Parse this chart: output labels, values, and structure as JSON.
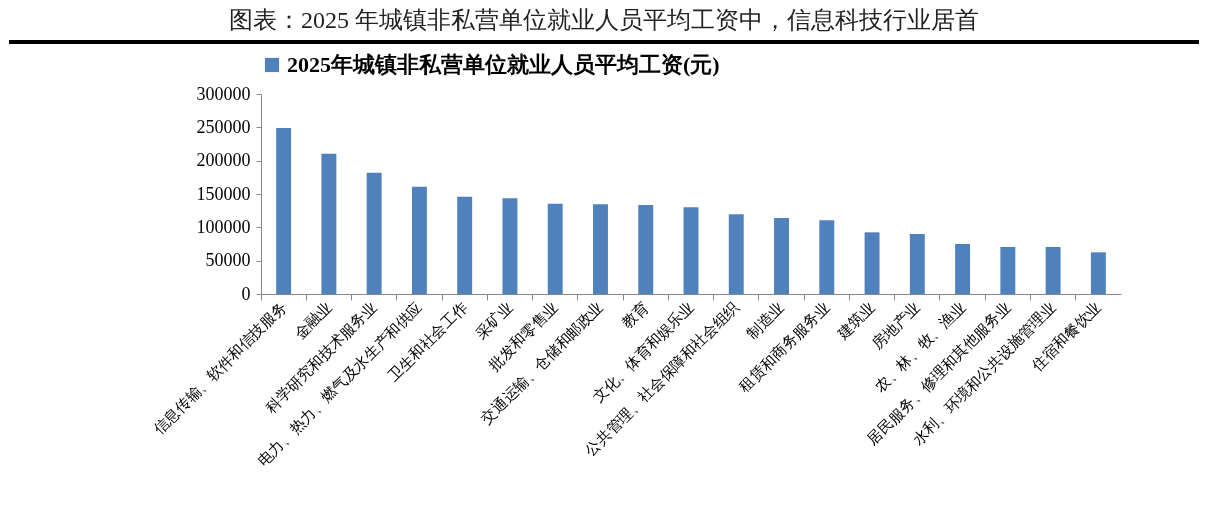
{
  "chart_data": {
    "type": "bar",
    "title": "图表：2025 年城镇非私营单位就业人员平均工资中，信息科技行业居首",
    "categories": [
      "信息传输、软件和信技服务",
      "金融业",
      "科学研究和技术服务业",
      "电力、热力、燃气及水生产和供应",
      "卫生和社会工作",
      "采矿业",
      "批发和零售业",
      "交通运输、仓储和邮政业",
      "教育",
      "文化、体育和娱乐业",
      "公共管理、社会保障和社会组织",
      "制造业",
      "租赁和商务服务业",
      "建筑业",
      "房地产业",
      "农、林、牧、渔业",
      "居民服务、修理和其他服务业",
      "水利、环境和公共设施管理业",
      "住宿和餐饮业"
    ],
    "series": [
      {
        "name": "2025年城镇非私营单位就业人员平均工资(元)",
        "color": "#4f81bd",
        "values": [
          249000,
          210500,
          182000,
          161000,
          146000,
          143500,
          135500,
          134500,
          133500,
          130000,
          119500,
          114000,
          110500,
          92500,
          90000,
          75000,
          70500,
          70500,
          62500
        ]
      }
    ],
    "ylim": [
      0,
      300000
    ],
    "yticks": [
      0,
      50000,
      100000,
      150000,
      200000,
      250000,
      300000
    ],
    "grid": false,
    "legend": "top"
  }
}
